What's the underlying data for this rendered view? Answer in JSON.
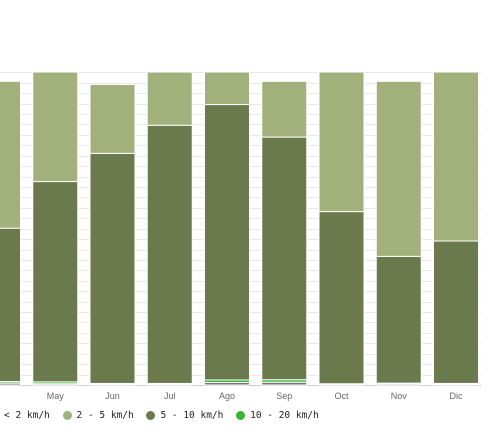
{
  "chart_data": {
    "type": "bar",
    "stacked": true,
    "categories": [
      "Abr",
      "May",
      "Jun",
      "Jul",
      "Ago",
      "Sep",
      "Oct",
      "Nov",
      "Dic"
    ],
    "visible_category_labels": [
      "r",
      "May",
      "Jun",
      "Jul",
      "Ago",
      "Sep",
      "Oct",
      "Nov",
      "Dic"
    ],
    "ylim": [
      0,
      100
    ],
    "grid": true,
    "legend_position": "bottom",
    "series": [
      {
        "name": "< 2 km/h",
        "label": "< 2 km/h",
        "visible_label": "< 2 km/h",
        "color": "#777777",
        "values": [
          0.6,
          0.4,
          0.3,
          0.3,
          0.8,
          0.9,
          0.3,
          0.4,
          0.3
        ]
      },
      {
        "name": "10 - 20 km/h",
        "label": "10 - 20 km/h",
        "color": "#33b733",
        "values": [
          0.5,
          0.6,
          0.2,
          0.2,
          0.8,
          0.8,
          0.1,
          0.2,
          0.2
        ]
      },
      {
        "name": "5 - 10 km/h",
        "label": "5 - 10 km/h",
        "color": "#6b7a4d",
        "values": [
          49,
          64,
          73.5,
          82.5,
          88,
          77.5,
          55,
          40.5,
          45.5
        ]
      },
      {
        "name": "2 - 5 km/h",
        "label": "2 - 5 km/h",
        "color": "#a2b07c",
        "values": [
          46.9,
          35,
          22,
          17,
          10.4,
          17.8,
          44.6,
          55.9,
          54
        ]
      }
    ],
    "legend_order": [
      "< 2 km/h",
      "2 - 5 km/h",
      "5 - 10 km/h",
      "10 - 20 km/h"
    ]
  }
}
